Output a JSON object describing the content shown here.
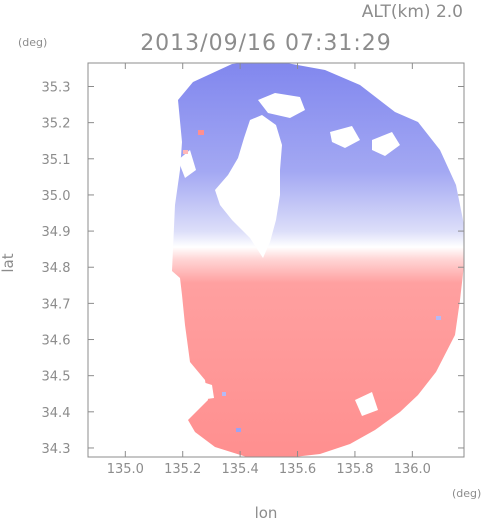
{
  "header": {
    "altitude_label": "ALT(km) 2.0",
    "timestamp": "2013/09/16 07:31:29"
  },
  "chart_data": {
    "type": "heatmap",
    "title": "2013/09/16 07:31:29",
    "xlabel": "lon",
    "ylabel": "lat",
    "x_unit": "(deg)",
    "y_unit": "(deg)",
    "xlim": [
      134.87,
      136.18
    ],
    "ylim": [
      34.275,
      35.365
    ],
    "x_ticks": [
      "135.0",
      "135.2",
      "135.4",
      "135.6",
      "135.8",
      "136.0"
    ],
    "x_tick_values": [
      135.0,
      135.2,
      135.4,
      135.6,
      135.8,
      136.0
    ],
    "y_ticks": [
      "34.3",
      "34.4",
      "34.5",
      "34.6",
      "34.7",
      "34.8",
      "34.9",
      "35.0",
      "35.1",
      "35.2",
      "35.3"
    ],
    "y_tick_values": [
      34.3,
      34.4,
      34.5,
      34.6,
      34.7,
      34.8,
      34.9,
      35.0,
      35.1,
      35.2,
      35.3
    ],
    "radar_center": {
      "lon": 135.52,
      "lat": 34.82
    },
    "colors": {
      "approaching": "#7f84f0",
      "receding": "#ff8f8f",
      "neutral": "#ffffff",
      "axis": "#8c8c8c"
    }
  }
}
